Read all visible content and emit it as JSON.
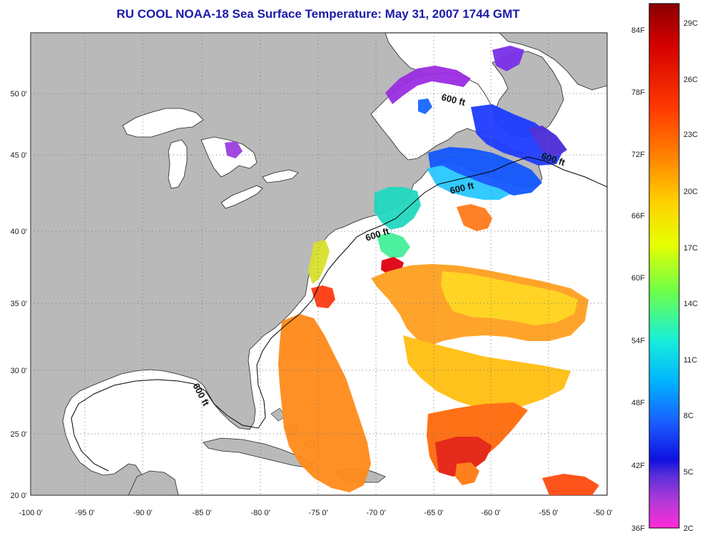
{
  "title": "RU COOL  NOAA-18  Sea Surface Temperature:  May 31, 2007 1744 GMT",
  "map": {
    "lon_ticks": [
      "-100 0'",
      "-95 0'",
      "-90 0'",
      "-85 0'",
      "-80 0'",
      "-75 0'",
      "-70 0'",
      "-65 0'",
      "-60 0'",
      "-55 0'",
      "-50 0'"
    ],
    "lat_ticks": [
      "50 0'",
      "45 0'",
      "40 0'",
      "35 0'",
      "30 0'",
      "25 0'",
      "20 0'"
    ],
    "depth_contour_label": "600 ft",
    "colors": {
      "land": "#b9b9b9",
      "ocean_no_data": "#ffffff",
      "title": "#1a1aa8"
    }
  },
  "colorbar": {
    "fahrenheit_labels": [
      "84F",
      "78F",
      "72F",
      "66F",
      "60F",
      "54F",
      "48F",
      "42F",
      "36F"
    ],
    "celsius_labels": [
      "29C",
      "26C",
      "23C",
      "20C",
      "17C",
      "14C",
      "11C",
      "8C",
      "5C",
      "2C"
    ],
    "range_c": [
      2,
      30
    ]
  }
}
